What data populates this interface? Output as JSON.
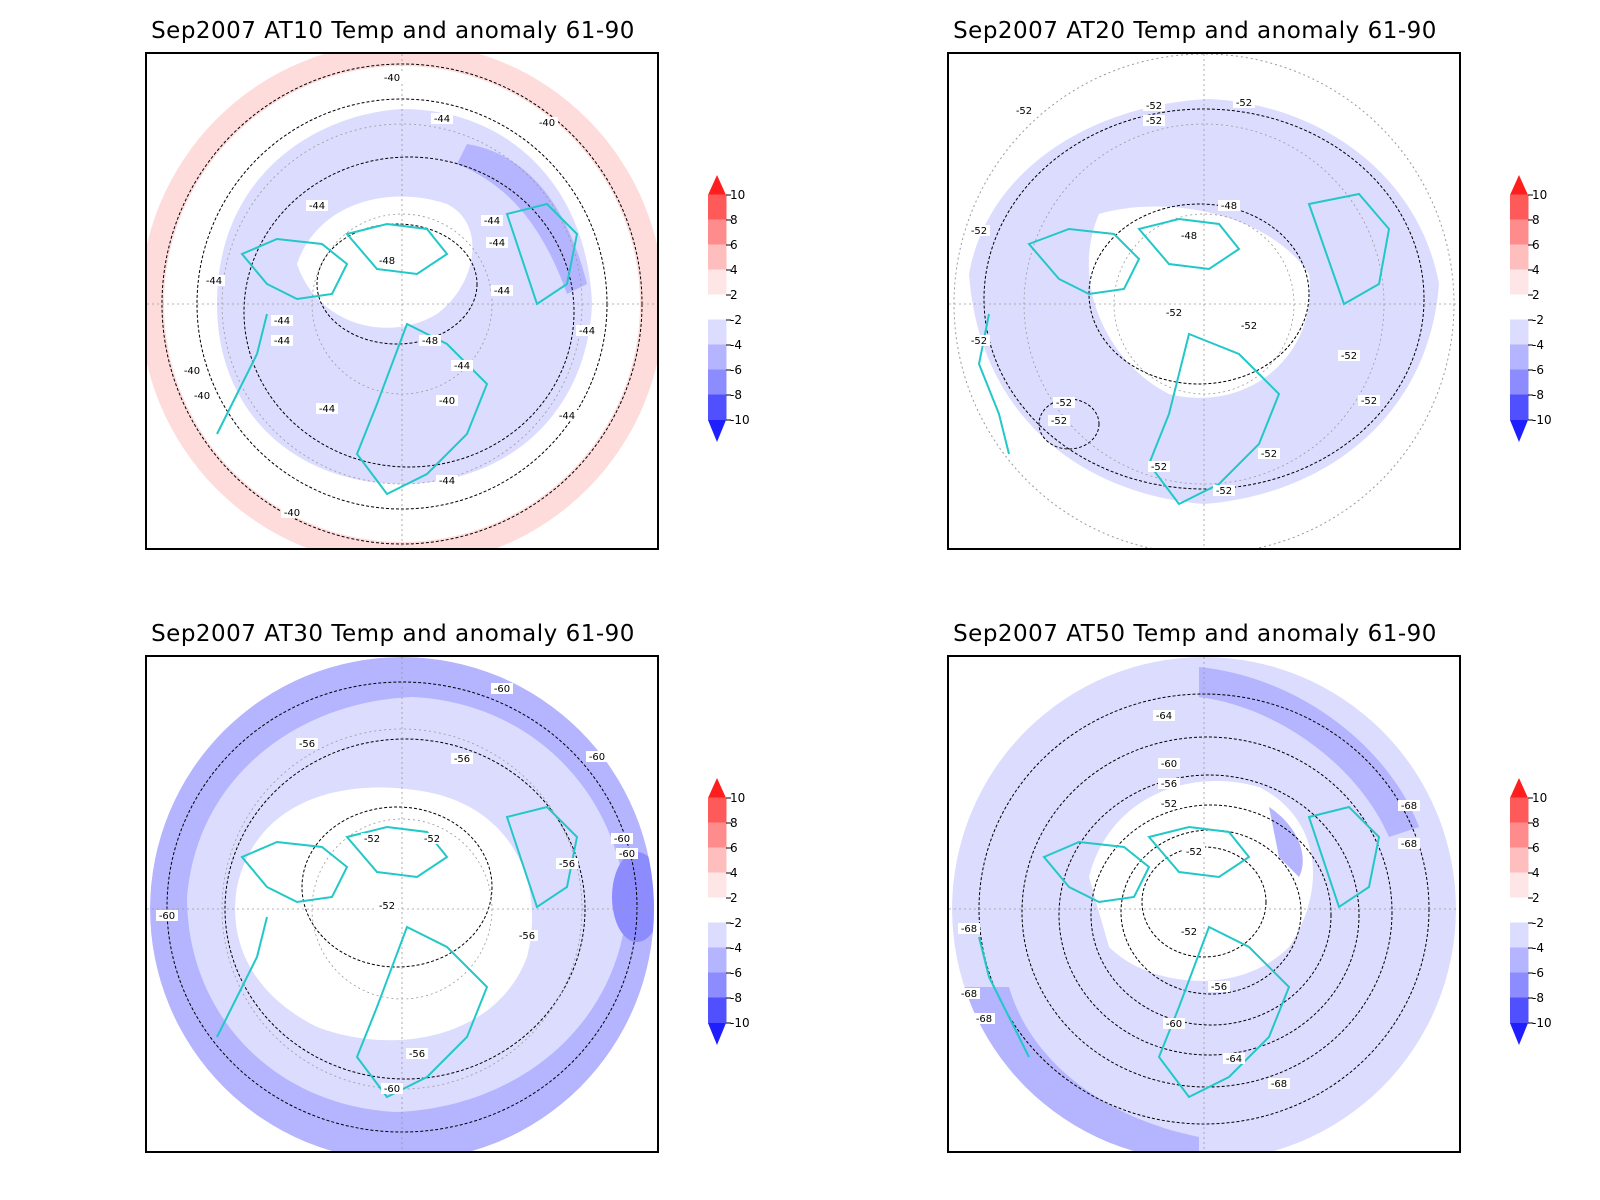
{
  "panels": [
    {
      "title": "Sep2007 AT10 Temp and anomaly 61-90",
      "contour_labels": [
        "-40",
        "-40",
        "-44",
        "-44",
        "-44",
        "-44",
        "-44",
        "-44",
        "-48",
        "-48",
        "-44",
        "-44",
        "-44",
        "-44",
        "-40",
        "-40",
        "-44",
        "-44",
        "-40",
        "-44",
        "-40"
      ]
    },
    {
      "title": "Sep2007 AT20 Temp and anomaly 61-90",
      "contour_labels": [
        "-52",
        "-52",
        "-52",
        "-52",
        "-48",
        "-48",
        "-52",
        "-52",
        "-52",
        "-52",
        "-52",
        "-52",
        "-52",
        "-52",
        "-52",
        "-52",
        "-52"
      ]
    },
    {
      "title": "Sep2007 AT30 Temp and anomaly 61-90",
      "contour_labels": [
        "-60",
        "-56",
        "-56",
        "-60",
        "-52",
        "-52",
        "-52",
        "-60",
        "-60",
        "-56",
        "-56",
        "-56",
        "-60",
        "-60"
      ]
    },
    {
      "title": "Sep2007 AT50 Temp and anomaly 61-90",
      "contour_labels": [
        "-64",
        "-60",
        "-56",
        "-52",
        "-52",
        "-52",
        "-56",
        "-60",
        "-64",
        "-68",
        "-68",
        "-68",
        "-68",
        "-68",
        "-68"
      ]
    }
  ],
  "colorbar": {
    "ticks": [
      "10",
      "8",
      "6",
      "4",
      "2",
      "-2",
      "-4",
      "-6",
      "-8",
      "-10"
    ],
    "colors": [
      "#ff1e1e",
      "#ff5a5a",
      "#ff8c8c",
      "#ffbebe",
      "#ffe6e6",
      "#ffffff",
      "#dcdcff",
      "#b4b4ff",
      "#8c8cff",
      "#5050ff",
      "#1e1eff"
    ]
  },
  "colors": {
    "coastline": "#22c8c8",
    "contour": "#000000",
    "grid": "#9a9a9a"
  }
}
